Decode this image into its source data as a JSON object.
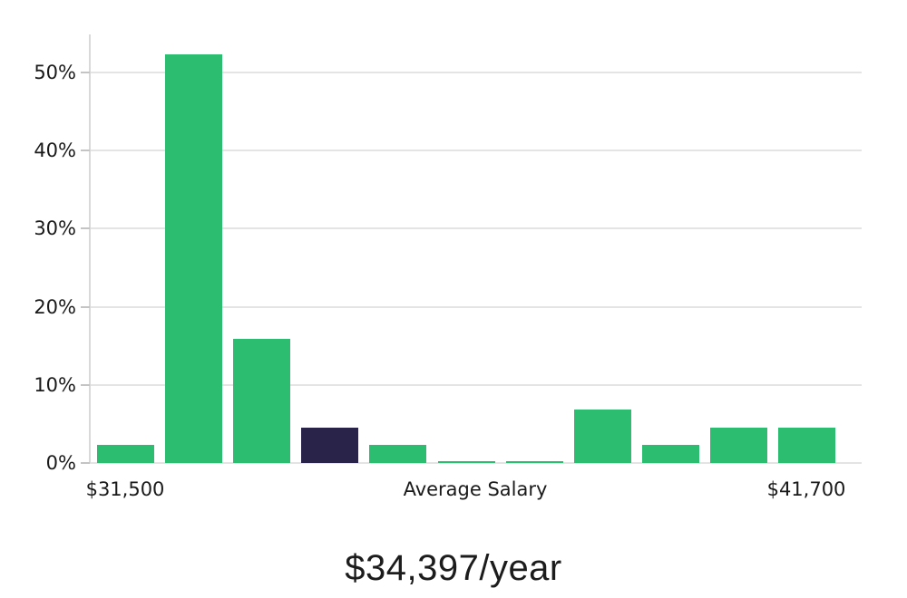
{
  "chart_data": {
    "type": "bar",
    "title": "$34,397/year",
    "x_axis": {
      "first_tick": "$31,500",
      "label": "Average Salary",
      "last_tick": "$41,700"
    },
    "y_ticks": [
      0,
      10,
      20,
      30,
      40,
      50
    ],
    "y_tick_labels": [
      "0%",
      "10%",
      "20%",
      "30%",
      "40%",
      "50%"
    ],
    "ylim": [
      0,
      54.9
    ],
    "grid": true,
    "legend": "none",
    "values": [
      2.3,
      52.3,
      15.9,
      4.5,
      2.3,
      0.2,
      0.2,
      6.8,
      2.3,
      4.5,
      4.5
    ],
    "highlight_index": 3,
    "bar_color": "#2dbd71",
    "highlight_color": "#292349"
  },
  "colors": {
    "background": "#ffffff",
    "gridline": "#e4e4e4",
    "axis_line": "#d9d9d9",
    "tick": "#c4c4c4",
    "label_text": "#1a1a1a",
    "title_text": "#1c1c1c"
  }
}
